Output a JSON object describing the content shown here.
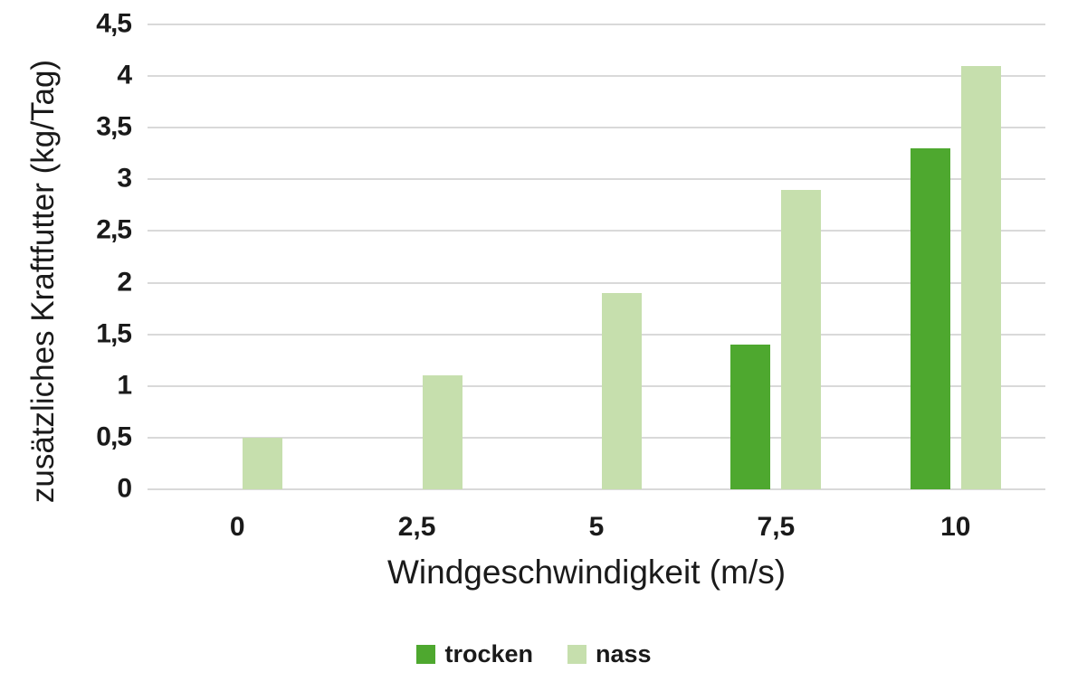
{
  "chart_data": {
    "type": "bar",
    "title": "",
    "xlabel": "Windgeschwindigkeit (m/s)",
    "ylabel": "zusätzliches Kraftfutter (kg/Tag)",
    "categories": [
      "0",
      "2,5",
      "5",
      "7,5",
      "10"
    ],
    "series": [
      {
        "name": "trocken",
        "color": "#4ea82f",
        "values": [
          0,
          0,
          0,
          1.4,
          3.3
        ]
      },
      {
        "name": "nass",
        "color": "#c6dfad",
        "values": [
          0.5,
          1.1,
          1.9,
          2.9,
          4.1
        ]
      }
    ],
    "ylim": [
      0,
      4.5
    ],
    "ytick_step": 0.5,
    "ytick_labels": [
      "0",
      "0,5",
      "1",
      "1,5",
      "2",
      "2,5",
      "3",
      "3,5",
      "4",
      "4,5"
    ],
    "grid": "horizontal",
    "gridline_color": "#d9d9d9",
    "text_color": "#1a1a1a",
    "background_color": "#ffffff",
    "legend_position": "bottom",
    "legend_labels": [
      "trocken",
      "nass"
    ]
  }
}
